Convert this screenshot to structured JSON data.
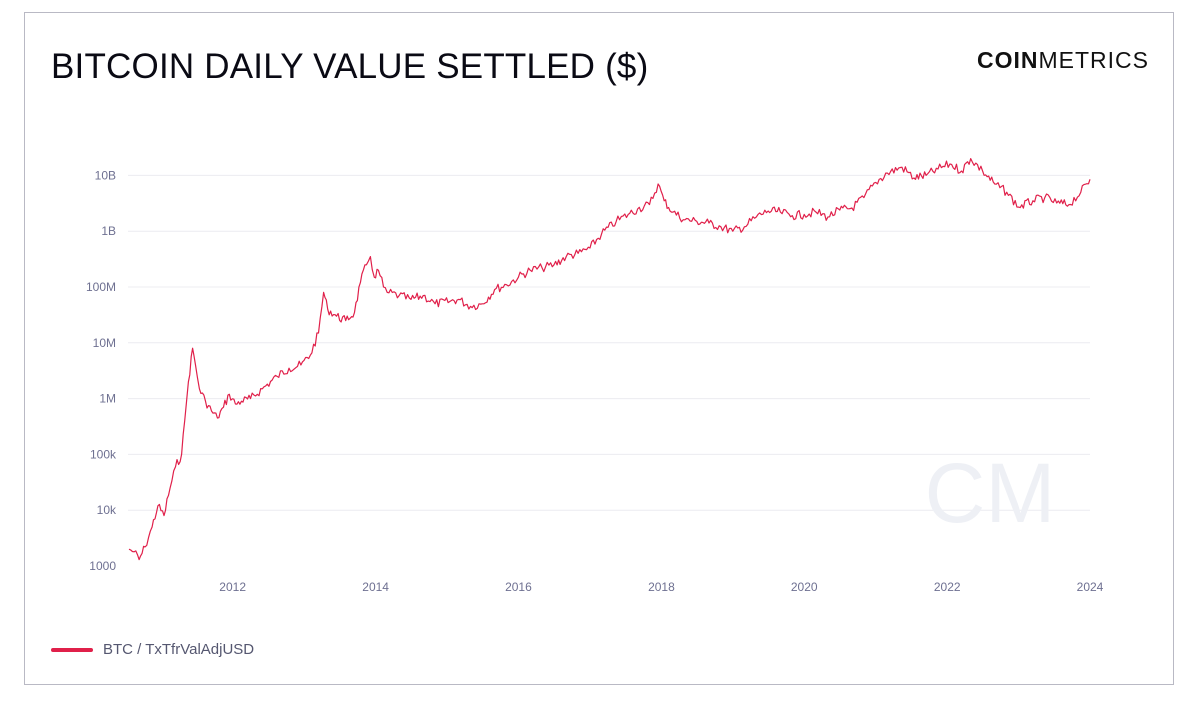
{
  "header": {
    "title": "BITCOIN DAILY VALUE SETTLED ($)",
    "brand_bold": "COIN",
    "brand_light": "METRICS"
  },
  "colors": {
    "series": "#e0204a",
    "grid": "#ececf1",
    "axis_text": "#6e7091",
    "watermark": "#eef0f5"
  },
  "watermark": "CM",
  "legend": {
    "label": "BTC / TxTfrValAdjUSD"
  },
  "chart_data": {
    "type": "line",
    "title": "BITCOIN DAILY VALUE SETTLED ($)",
    "xlabel": "",
    "ylabel": "",
    "y_scale": "log",
    "ylim": [
      1000,
      30000000000
    ],
    "xlim": [
      "2010-07-15",
      "2024-01-01"
    ],
    "grid": "horizontal",
    "legend_position": "bottom-left",
    "x_tick_labels": [
      "2012",
      "2014",
      "2016",
      "2018",
      "2020",
      "2022",
      "2024"
    ],
    "y_tick_labels": [
      "1000",
      "10k",
      "100k",
      "1M",
      "10M",
      "100M",
      "1B",
      "10B"
    ],
    "y_tick_values": [
      1000,
      10000,
      100000,
      1000000,
      10000000,
      100000000,
      1000000000,
      10000000000
    ],
    "series": [
      {
        "name": "BTC / TxTfrValAdjUSD",
        "x": [
          "2010-07-20",
          "2010-08-15",
          "2010-09-10",
          "2010-10-10",
          "2010-11-15",
          "2010-12-15",
          "2011-01-15",
          "2011-02-15",
          "2011-03-15",
          "2011-04-15",
          "2011-05-01",
          "2011-05-20",
          "2011-06-10",
          "2011-06-25",
          "2011-07-15",
          "2011-08-15",
          "2011-09-15",
          "2011-10-15",
          "2011-11-15",
          "2011-12-15",
          "2012-01-15",
          "2012-02-15",
          "2012-04-01",
          "2012-06-01",
          "2012-08-15",
          "2012-10-15",
          "2012-12-15",
          "2013-02-01",
          "2013-03-15",
          "2013-04-10",
          "2013-05-01",
          "2013-06-15",
          "2013-08-01",
          "2013-09-15",
          "2013-10-15",
          "2013-11-15",
          "2013-12-05",
          "2013-12-25",
          "2014-01-15",
          "2014-02-10",
          "2014-03-01",
          "2014-05-01",
          "2014-07-01",
          "2014-09-01",
          "2014-11-01",
          "2015-01-15",
          "2015-03-01",
          "2015-05-01",
          "2015-07-01",
          "2015-09-01",
          "2015-11-01",
          "2016-01-01",
          "2016-03-01",
          "2016-05-01",
          "2016-07-01",
          "2016-09-01",
          "2016-11-01",
          "2017-01-01",
          "2017-03-01",
          "2017-05-15",
          "2017-07-15",
          "2017-09-01",
          "2017-11-01",
          "2017-12-15",
          "2018-01-15",
          "2018-03-01",
          "2018-05-01",
          "2018-07-01",
          "2018-09-01",
          "2018-11-01",
          "2019-01-01",
          "2019-03-01",
          "2019-05-01",
          "2019-07-01",
          "2019-09-01",
          "2019-11-01",
          "2020-01-01",
          "2020-03-01",
          "2020-05-01",
          "2020-07-01",
          "2020-09-01",
          "2020-11-01",
          "2021-01-01",
          "2021-03-01",
          "2021-05-15",
          "2021-07-15",
          "2021-09-15",
          "2021-11-15",
          "2022-01-15",
          "2022-03-15",
          "2022-05-01",
          "2022-07-01",
          "2022-09-01",
          "2022-11-01",
          "2023-01-01",
          "2023-03-15",
          "2023-05-15",
          "2023-07-15",
          "2023-09-15",
          "2023-11-15",
          "2024-01-01"
        ],
        "values": [
          2000,
          1800,
          1300,
          2200,
          5000,
          12000,
          8000,
          25000,
          60000,
          100000,
          400000,
          2000000,
          8000000,
          4000000,
          1500000,
          900000,
          600000,
          450000,
          700000,
          1200000,
          800000,
          900000,
          1000000,
          1500000,
          2500000,
          3500000,
          4000000,
          6000000,
          15000000,
          80000000,
          40000000,
          30000000,
          25000000,
          35000000,
          120000000,
          250000000,
          350000000,
          150000000,
          200000000,
          100000000,
          80000000,
          70000000,
          60000000,
          70000000,
          50000000,
          55000000,
          60000000,
          45000000,
          50000000,
          90000000,
          110000000,
          150000000,
          200000000,
          220000000,
          250000000,
          350000000,
          400000000,
          500000000,
          900000000,
          1500000000,
          2000000000,
          2500000000,
          3000000000,
          7000000000,
          3500000000,
          2200000000,
          1600000000,
          1500000000,
          1400000000,
          1200000000,
          1000000000,
          1200000000,
          1800000000,
          2300000000,
          2200000000,
          1900000000,
          2000000000,
          2200000000,
          1800000000,
          2400000000,
          2600000000,
          4000000000,
          7500000000,
          11000000000,
          14000000000,
          9000000000,
          10000000000,
          13000000000,
          16000000000,
          12000000000,
          20000000000,
          12000000000,
          7000000000,
          5000000000,
          2700000000,
          3500000000,
          4000000000,
          3200000000,
          3000000000,
          5000000000,
          8500000000
        ]
      }
    ]
  }
}
